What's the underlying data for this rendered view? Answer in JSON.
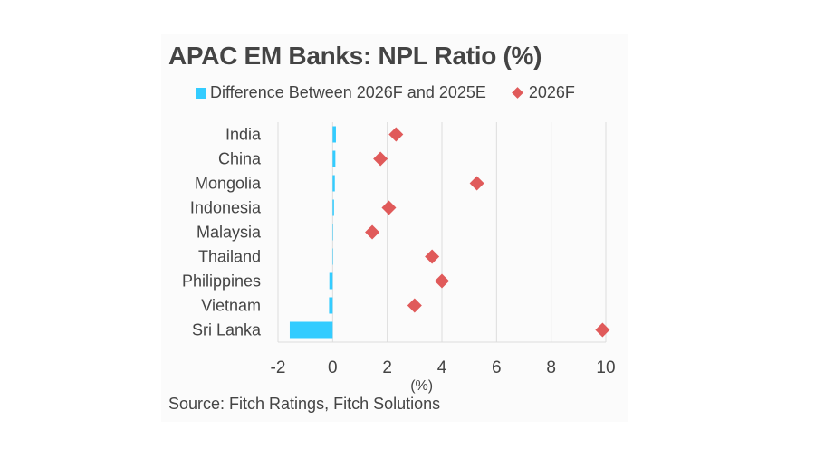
{
  "chart_data": {
    "type": "bar",
    "title": "APAC EM Banks: NPL Ratio (%)",
    "categories": [
      "India",
      "China",
      "Mongolia",
      "Indonesia",
      "Malaysia",
      "Thailand",
      "Philippines",
      "Vietnam",
      "Sri Lanka"
    ],
    "series": [
      {
        "name": "Difference Between 2026F and 2025E",
        "type": "bar",
        "color": "#33ccff",
        "values": [
          0.12,
          0.1,
          0.08,
          0.05,
          0.01,
          0.0,
          -0.12,
          -0.13,
          -1.57
        ]
      },
      {
        "name": "2026F",
        "type": "scatter",
        "marker": "diamond",
        "color": "#e05a5a",
        "values": [
          2.32,
          1.75,
          5.28,
          2.06,
          1.45,
          3.64,
          4.0,
          3.0,
          9.88
        ]
      }
    ],
    "xlabel": "(%)",
    "xlim": [
      -2,
      10
    ],
    "xticks": [
      -2,
      0,
      2,
      4,
      6,
      8,
      10
    ],
    "grid": "vertical",
    "legend": "top",
    "source": "Source: Fitch Ratings, Fitch Solutions"
  }
}
